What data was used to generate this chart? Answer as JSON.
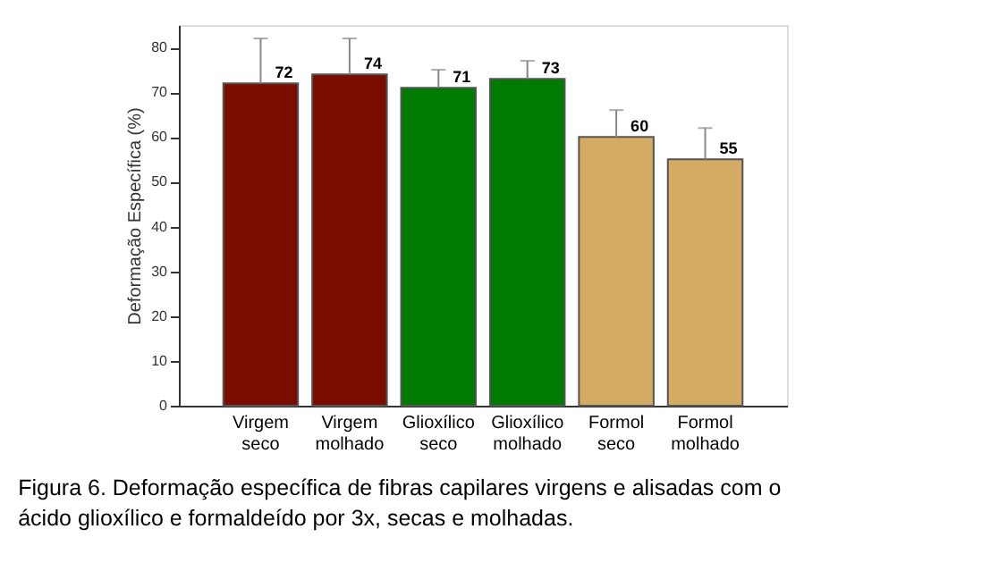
{
  "chart_data": {
    "type": "bar",
    "ylabel": "Deformação Específica (%)",
    "categories": [
      "Virgem seco",
      "Virgem molhado",
      "Glioxílico seco",
      "Glioxílico molhado",
      "Formol seco",
      "Formol molhado"
    ],
    "values": [
      72,
      74,
      71,
      73,
      60,
      55
    ],
    "errors": [
      10,
      8,
      4,
      4,
      6,
      7
    ],
    "colors": [
      "#7a0c00",
      "#7a0c00",
      "#007a00",
      "#007a00",
      "#d4ab64",
      "#d4ab64"
    ],
    "ylim": [
      0,
      85
    ],
    "yticks": [
      0,
      10,
      20,
      30,
      40,
      50,
      60,
      70,
      80
    ],
    "data_labels": true,
    "grid": false,
    "annotations": [
      "Figura 6. Deformação específica de fibras capilares virgens e alisadas com o ácido glioxílico e formaldeído por 3x, secas e molhadas."
    ]
  }
}
